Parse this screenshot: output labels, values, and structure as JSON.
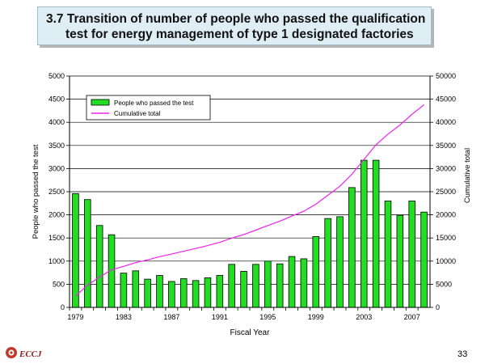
{
  "title": {
    "line1": "3.7 Transition of number of people who passed the qualification",
    "line2": "test for energy management of type 1 designated factories"
  },
  "footer": {
    "logo_text": "ECCJ",
    "page_number": "33"
  },
  "colors": {
    "bar": "#22dd22",
    "line": "#ee22ee",
    "title_bg": "#dfeef5"
  },
  "chart_data": {
    "type": "bar",
    "xlabel": "Fiscal Year",
    "ylabel": "People who passed the test",
    "y2label": "Cumulative total",
    "ylim": [
      0,
      5000
    ],
    "y2lim": [
      0,
      50000
    ],
    "yticks": [
      0,
      500,
      1000,
      1500,
      2000,
      2500,
      3000,
      3500,
      4000,
      4500,
      5000
    ],
    "y2ticks": [
      0,
      5000,
      10000,
      15000,
      20000,
      25000,
      30000,
      35000,
      40000,
      45000,
      50000
    ],
    "xticks": [
      "1979",
      "1983",
      "1987",
      "1991",
      "1995",
      "1999",
      "2003",
      "2007"
    ],
    "grid": true,
    "legend_position": "top-left",
    "categories": [
      "1979",
      "1980",
      "1981",
      "1982",
      "1983",
      "1984",
      "1985",
      "1986",
      "1987",
      "1988",
      "1989",
      "1990",
      "1991",
      "1992",
      "1993",
      "1994",
      "1995",
      "1996",
      "1997",
      "1998",
      "1999",
      "2000",
      "2001",
      "2002",
      "2003",
      "2004",
      "2005",
      "2006",
      "2007",
      "2008"
    ],
    "series": [
      {
        "name": "People who passed the test",
        "kind": "bar",
        "axis": "left",
        "values": [
          2460,
          2330,
          1770,
          1570,
          740,
          790,
          610,
          690,
          560,
          620,
          580,
          640,
          690,
          930,
          780,
          930,
          1000,
          940,
          1100,
          1050,
          1530,
          1920,
          1960,
          2590,
          3180,
          3180,
          2300,
          1990,
          2300,
          2060
        ]
      },
      {
        "name": "Cumulative total",
        "kind": "line",
        "axis": "right",
        "values": [
          2460,
          4790,
          6560,
          8130,
          8870,
          9660,
          10270,
          10960,
          11520,
          12140,
          12720,
          13360,
          14050,
          14980,
          15760,
          16690,
          17690,
          18630,
          19730,
          20780,
          22310,
          24230,
          26190,
          28780,
          31960,
          35140,
          37440,
          39430,
          41730,
          43790
        ]
      }
    ]
  }
}
